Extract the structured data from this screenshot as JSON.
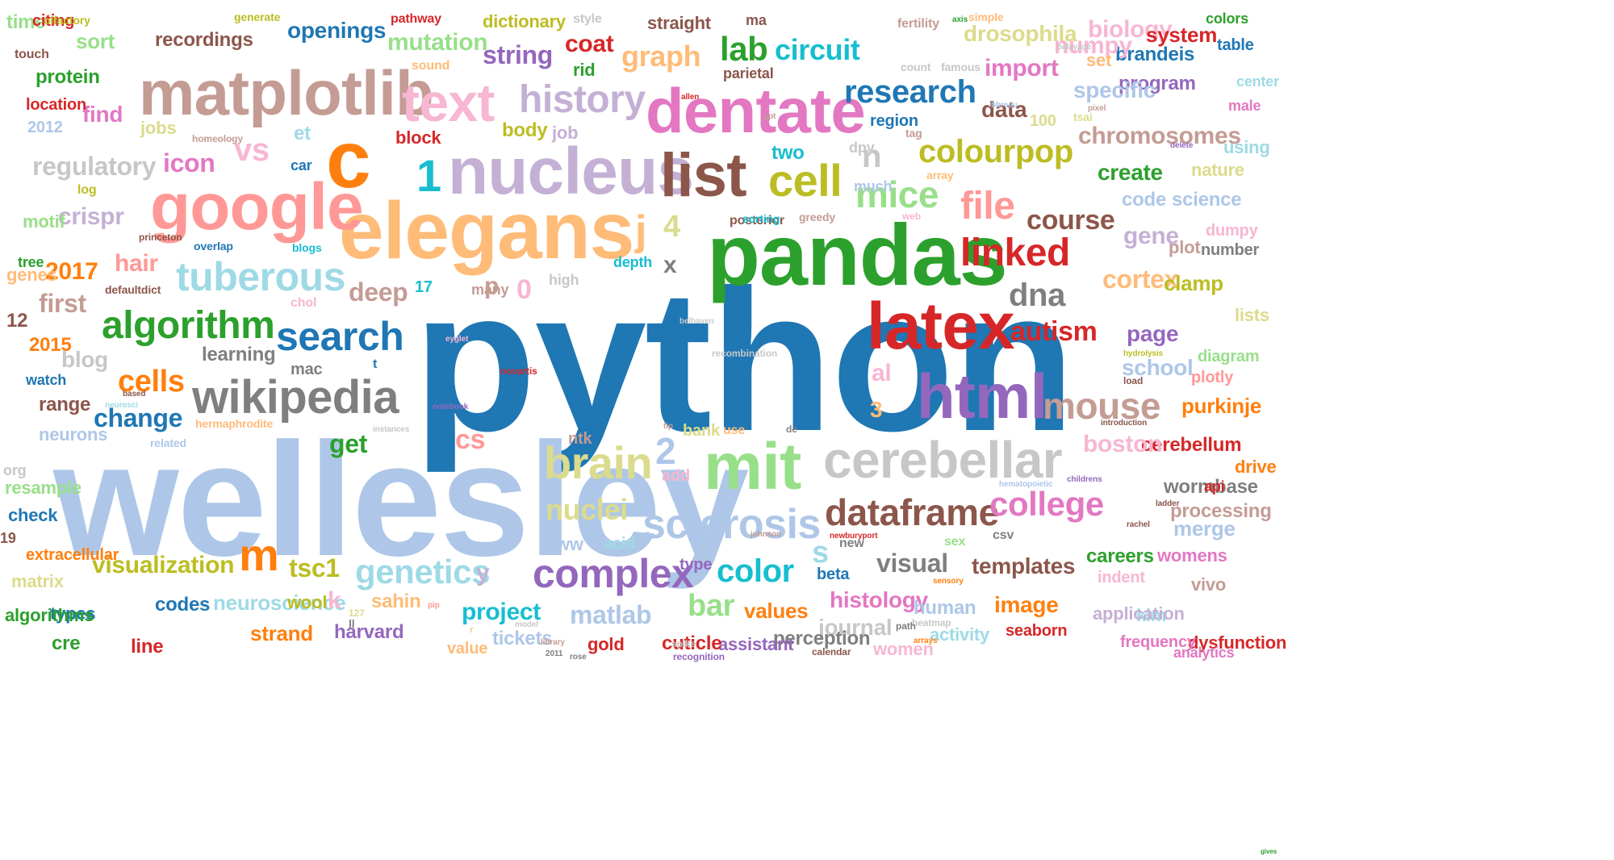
{
  "palette": {
    "blue": "#1f77b4",
    "light_blue": "#aec7e8",
    "orange": "#ff7f0e",
    "light_orange": "#ffbb78",
    "green": "#2ca02c",
    "light_green": "#98df8a",
    "red": "#d62728",
    "pink": "#ff9896",
    "purple": "#9467bd",
    "lavender": "#c5b0d5",
    "brown": "#8c564b",
    "tan": "#c49c94",
    "magenta": "#e377c2",
    "light_pink": "#f7b6d2",
    "gray": "#7f7f7f",
    "light_gray": "#c7c7c7",
    "olive": "#bcbd22",
    "khaki": "#dbdb8d",
    "cyan": "#17becf",
    "light_cyan": "#9edae5"
  },
  "words": [
    {
      "text": "python",
      "color": "blue"
    },
    {
      "text": "wellesley",
      "color": "light_blue"
    },
    {
      "text": "pandas",
      "color": "green"
    },
    {
      "text": "elegans",
      "color": "light_orange"
    },
    {
      "text": "nucleus",
      "color": "lavender"
    },
    {
      "text": "matplotlib",
      "color": "tan"
    },
    {
      "text": "google",
      "color": "pink"
    },
    {
      "text": "dentate",
      "color": "magenta"
    },
    {
      "text": "latex",
      "color": "red"
    },
    {
      "text": "html",
      "color": "purple"
    },
    {
      "text": "mit",
      "color": "light_green"
    },
    {
      "text": "cerebellar",
      "color": "light_gray"
    },
    {
      "text": "c",
      "color": "orange"
    },
    {
      "text": "list",
      "color": "brown"
    },
    {
      "text": "wikipedia",
      "color": "gray"
    },
    {
      "text": "text",
      "color": "light_pink"
    },
    {
      "text": "brain",
      "color": "khaki"
    },
    {
      "text": "history",
      "color": "lavender"
    },
    {
      "text": "algorithm",
      "color": "green"
    },
    {
      "text": "search",
      "color": "blue"
    },
    {
      "text": "tuberous",
      "color": "light_cyan"
    },
    {
      "text": "sclerosis",
      "color": "light_blue"
    },
    {
      "text": "complex",
      "color": "purple"
    },
    {
      "text": "dataframe",
      "color": "brown"
    },
    {
      "text": "cell",
      "color": "olive"
    },
    {
      "text": "mice",
      "color": "light_green"
    },
    {
      "text": "colourpop",
      "color": "olive"
    },
    {
      "text": "research",
      "color": "blue"
    },
    {
      "text": "linked",
      "color": "red"
    },
    {
      "text": "mouse",
      "color": "tan"
    },
    {
      "text": "college",
      "color": "magenta"
    },
    {
      "text": "dna",
      "color": "gray"
    },
    {
      "text": "file",
      "color": "pink"
    },
    {
      "text": "lab",
      "color": "green"
    },
    {
      "text": "circuit",
      "color": "cyan"
    },
    {
      "text": "graph",
      "color": "light_orange"
    },
    {
      "text": "string",
      "color": "purple"
    },
    {
      "text": "coat",
      "color": "red"
    },
    {
      "text": "mutation",
      "color": "light_green"
    },
    {
      "text": "openings",
      "color": "blue"
    },
    {
      "text": "recordings",
      "color": "brown"
    },
    {
      "text": "course",
      "color": "brown"
    },
    {
      "text": "autism",
      "color": "red"
    },
    {
      "text": "genetics",
      "color": "light_cyan"
    },
    {
      "text": "nuclei",
      "color": "khaki"
    },
    {
      "text": "color",
      "color": "cyan"
    },
    {
      "text": "visualization",
      "color": "olive"
    },
    {
      "text": "change",
      "color": "blue"
    },
    {
      "text": "cells",
      "color": "orange"
    },
    {
      "text": "blog",
      "color": "light_gray"
    },
    {
      "text": "regulatory",
      "color": "light_gray"
    },
    {
      "text": "icon",
      "color": "magenta"
    },
    {
      "text": "crispr",
      "color": "lavender"
    },
    {
      "text": "hair",
      "color": "pink"
    },
    {
      "text": "2017",
      "color": "orange"
    },
    {
      "text": "deep",
      "color": "tan"
    },
    {
      "text": "first",
      "color": "tan"
    },
    {
      "text": "vs",
      "color": "light_pink"
    },
    {
      "text": "find",
      "color": "magenta"
    },
    {
      "text": "protein",
      "color": "green"
    },
    {
      "text": "m",
      "color": "orange"
    },
    {
      "text": "tsc1",
      "color": "olive"
    },
    {
      "text": "project",
      "color": "cyan"
    },
    {
      "text": "matlab",
      "color": "light_blue"
    },
    {
      "text": "bar",
      "color": "light_green"
    },
    {
      "text": "values",
      "color": "orange"
    },
    {
      "text": "histology",
      "color": "magenta"
    },
    {
      "text": "image",
      "color": "orange"
    },
    {
      "text": "templates",
      "color": "brown"
    },
    {
      "text": "visual",
      "color": "gray"
    },
    {
      "text": "journal",
      "color": "light_gray"
    },
    {
      "text": "human",
      "color": "light_blue"
    },
    {
      "text": "careers",
      "color": "green"
    },
    {
      "text": "womens",
      "color": "magenta"
    },
    {
      "text": "cerebellum",
      "color": "red"
    },
    {
      "text": "boston",
      "color": "light_pink"
    },
    {
      "text": "purkinje",
      "color": "orange"
    },
    {
      "text": "wormbase",
      "color": "gray"
    },
    {
      "text": "merge",
      "color": "light_blue"
    },
    {
      "text": "processing",
      "color": "tan"
    },
    {
      "text": "page",
      "color": "purple"
    },
    {
      "text": "school",
      "color": "light_blue"
    },
    {
      "text": "cortex",
      "color": "light_orange"
    },
    {
      "text": "clamp",
      "color": "olive"
    },
    {
      "text": "gene",
      "color": "lavender"
    },
    {
      "text": "plot",
      "color": "tan"
    },
    {
      "text": "create",
      "color": "green"
    },
    {
      "text": "code",
      "color": "light_blue"
    },
    {
      "text": "science",
      "color": "light_blue"
    },
    {
      "text": "nature",
      "color": "khaki"
    },
    {
      "text": "chromosomes",
      "color": "tan"
    },
    {
      "text": "biology",
      "color": "light_pink"
    },
    {
      "text": "system",
      "color": "red"
    },
    {
      "text": "brandeis",
      "color": "blue"
    },
    {
      "text": "program",
      "color": "purple"
    },
    {
      "text": "drosophila",
      "color": "khaki"
    },
    {
      "text": "numpy",
      "color": "light_pink"
    },
    {
      "text": "import",
      "color": "magenta"
    },
    {
      "text": "data",
      "color": "brown"
    },
    {
      "text": "region",
      "color": "blue"
    },
    {
      "text": "specific",
      "color": "light_blue"
    },
    {
      "text": "set",
      "color": "light_orange"
    },
    {
      "text": "dictionary",
      "color": "olive"
    },
    {
      "text": "straight",
      "color": "brown"
    },
    {
      "text": "sort",
      "color": "light_green"
    },
    {
      "text": "location",
      "color": "red"
    },
    {
      "text": "2012",
      "color": "light_blue"
    },
    {
      "text": "jobs",
      "color": "khaki"
    },
    {
      "text": "two",
      "color": "cyan"
    },
    {
      "text": "n",
      "color": "light_gray"
    },
    {
      "text": "1",
      "color": "cyan"
    },
    {
      "text": "j",
      "color": "light_orange"
    },
    {
      "text": "4",
      "color": "khaki"
    },
    {
      "text": "x",
      "color": "gray"
    },
    {
      "text": "0",
      "color": "light_pink"
    },
    {
      "text": "17",
      "color": "cyan"
    },
    {
      "text": "cs",
      "color": "pink"
    },
    {
      "text": "2",
      "color": "light_blue"
    },
    {
      "text": "al",
      "color": "light_pink"
    },
    {
      "text": "3",
      "color": "light_orange"
    },
    {
      "text": "s",
      "color": "light_cyan"
    },
    {
      "text": "y",
      "color": "lavender"
    },
    {
      "text": "get",
      "color": "green"
    },
    {
      "text": "add",
      "color": "light_pink"
    },
    {
      "text": "drive",
      "color": "orange"
    },
    {
      "text": "api",
      "color": "red"
    },
    {
      "text": "lists",
      "color": "khaki"
    },
    {
      "text": "plotly",
      "color": "pink"
    },
    {
      "text": "diagram",
      "color": "light_green"
    },
    {
      "text": "number",
      "color": "gray"
    },
    {
      "text": "dumpy",
      "color": "light_pink"
    },
    {
      "text": "using",
      "color": "light_cyan"
    },
    {
      "text": "center",
      "color": "light_cyan"
    },
    {
      "text": "table",
      "color": "blue"
    },
    {
      "text": "male",
      "color": "magenta"
    },
    {
      "text": "colors",
      "color": "green"
    },
    {
      "text": "vivo",
      "color": "tan"
    },
    {
      "text": "kim",
      "color": "light_cyan"
    },
    {
      "text": "dysfunction",
      "color": "red"
    },
    {
      "text": "frequency",
      "color": "magenta"
    },
    {
      "text": "application",
      "color": "lavender"
    },
    {
      "text": "indent",
      "color": "light_pink"
    },
    {
      "text": "analytics",
      "color": "magenta"
    },
    {
      "text": "seaborn",
      "color": "red"
    },
    {
      "text": "activity",
      "color": "light_cyan"
    },
    {
      "text": "women",
      "color": "light_pink"
    },
    {
      "text": "perception",
      "color": "gray"
    },
    {
      "text": "assistant",
      "color": "purple"
    },
    {
      "text": "cuticle",
      "color": "red"
    },
    {
      "text": "gold",
      "color": "red"
    },
    {
      "text": "tickets",
      "color": "light_blue"
    },
    {
      "text": "value",
      "color": "light_orange"
    },
    {
      "text": "harvard",
      "color": "purple"
    },
    {
      "text": "sahin",
      "color": "light_orange"
    },
    {
      "text": "strand",
      "color": "orange"
    },
    {
      "text": "neuroscience",
      "color": "light_cyan"
    },
    {
      "text": "wool",
      "color": "olive"
    },
    {
      "text": "codes",
      "color": "blue"
    },
    {
      "text": "line",
      "color": "red"
    },
    {
      "text": "cre",
      "color": "green"
    },
    {
      "text": "types",
      "color": "blue"
    },
    {
      "text": "algorithms",
      "color": "green"
    },
    {
      "text": "matrix",
      "color": "khaki"
    },
    {
      "text": "extracellular",
      "color": "orange"
    },
    {
      "text": "check",
      "color": "blue"
    },
    {
      "text": "resample",
      "color": "light_green"
    },
    {
      "text": "neurons",
      "color": "light_blue"
    },
    {
      "text": "range",
      "color": "brown"
    },
    {
      "text": "watch",
      "color": "blue"
    },
    {
      "text": "genes",
      "color": "light_orange"
    },
    {
      "text": "motif",
      "color": "light_green"
    },
    {
      "text": "log",
      "color": "olive"
    },
    {
      "text": "car",
      "color": "blue"
    },
    {
      "text": "et",
      "color": "light_cyan"
    },
    {
      "text": "block",
      "color": "red"
    },
    {
      "text": "body",
      "color": "olive"
    },
    {
      "text": "job",
      "color": "lavender"
    },
    {
      "text": "rid",
      "color": "green"
    },
    {
      "text": "100",
      "color": "khaki"
    },
    {
      "text": "tsai",
      "color": "khaki"
    },
    {
      "text": "time",
      "color": "light_green"
    },
    {
      "text": "mac",
      "color": "gray"
    },
    {
      "text": "learning",
      "color": "gray"
    },
    {
      "text": "many",
      "color": "tan"
    },
    {
      "text": "depth",
      "color": "cyan"
    },
    {
      "text": "high",
      "color": "light_gray"
    },
    {
      "text": "ntk",
      "color": "tan"
    },
    {
      "text": "bank",
      "color": "khaki"
    },
    {
      "text": "use",
      "color": "light_orange"
    },
    {
      "text": "www",
      "color": "light_blue"
    },
    {
      "text": "acid",
      "color": "light_cyan"
    },
    {
      "text": "type",
      "color": "purple"
    },
    {
      "text": "new",
      "color": "gray"
    },
    {
      "text": "sex",
      "color": "light_green"
    },
    {
      "text": "csv",
      "color": "gray"
    },
    {
      "text": "beta",
      "color": "blue"
    },
    {
      "text": "parietal",
      "color": "brown"
    },
    {
      "text": "ma",
      "color": "brown"
    },
    {
      "text": "style",
      "color": "light_gray"
    },
    {
      "text": "simple",
      "color": "light_orange"
    },
    {
      "text": "citing",
      "color": "red"
    },
    {
      "text": "generate",
      "color": "olive"
    },
    {
      "text": "pathway",
      "color": "red"
    },
    {
      "text": "fertility",
      "color": "tan"
    },
    {
      "text": "sound",
      "color": "light_orange"
    },
    {
      "text": "hermaphrodite",
      "color": "light_orange"
    },
    {
      "text": "related",
      "color": "light_blue"
    },
    {
      "text": "posterior",
      "color": "brown"
    },
    {
      "text": "sorting",
      "color": "cyan"
    },
    {
      "text": "greedy",
      "color": "tan"
    },
    {
      "text": "web",
      "color": "light_pink"
    },
    {
      "text": "much",
      "color": "light_blue"
    },
    {
      "text": "array",
      "color": "light_orange"
    },
    {
      "text": "dpy",
      "color": "light_gray"
    },
    {
      "text": "tag",
      "color": "tan"
    },
    {
      "text": "count",
      "color": "light_gray"
    },
    {
      "text": "famous",
      "color": "light_gray"
    },
    {
      "text": "chol",
      "color": "light_pink"
    },
    {
      "text": "overlap",
      "color": "blue"
    },
    {
      "text": "defaultdict",
      "color": "brown"
    },
    {
      "text": "olfactory",
      "color": "olive"
    },
    {
      "text": "touch",
      "color": "brown"
    },
    {
      "text": "homeology",
      "color": "tan"
    },
    {
      "text": "princeton",
      "color": "brown"
    },
    {
      "text": "blogs",
      "color": "cyan"
    },
    {
      "text": "gives",
      "color": "green"
    },
    {
      "text": "tree",
      "color": "green"
    },
    {
      "text": "org",
      "color": "light_gray"
    },
    {
      "text": "12",
      "color": "brown"
    },
    {
      "text": "2015",
      "color": "orange"
    },
    {
      "text": "19",
      "color": "brown"
    },
    {
      "text": "p",
      "color": "tan"
    },
    {
      "text": "t",
      "color": "blue"
    },
    {
      "text": "novartis",
      "color": "red"
    },
    {
      "text": "k",
      "color": "light_pink"
    },
    {
      "text": "127",
      "color": "khaki"
    },
    {
      "text": "ll",
      "color": "gray"
    },
    {
      "text": "r",
      "color": "khaki"
    },
    {
      "text": "pip",
      "color": "pink"
    },
    {
      "text": "library",
      "color": "tan"
    },
    {
      "text": "2011",
      "color": "gray"
    },
    {
      "text": "rose",
      "color": "gray"
    },
    {
      "text": "model",
      "color": "light_gray"
    },
    {
      "text": "recognition",
      "color": "purple"
    },
    {
      "text": "johnson",
      "color": "tan"
    },
    {
      "text": "newburyport",
      "color": "red"
    },
    {
      "text": "calendar",
      "color": "brown"
    },
    {
      "text": "heatmap",
      "color": "light_gray"
    },
    {
      "text": "spike",
      "color": "light_gray"
    },
    {
      "text": "de",
      "color": "gray"
    },
    {
      "text": "sensory",
      "color": "orange"
    },
    {
      "text": "path",
      "color": "gray"
    },
    {
      "text": "hematopoietic",
      "color": "light_blue"
    },
    {
      "text": "arrays",
      "color": "orange"
    },
    {
      "text": "introduction",
      "color": "brown"
    },
    {
      "text": "childrens",
      "color": "purple"
    },
    {
      "text": "ladder",
      "color": "brown"
    },
    {
      "text": "rachel",
      "color": "brown"
    },
    {
      "text": "tip",
      "color": "tan"
    },
    {
      "text": "neurosci",
      "color": "light_cyan"
    },
    {
      "text": "based",
      "color": "brown"
    },
    {
      "text": "hydrolysis",
      "color": "olive"
    },
    {
      "text": "load",
      "color": "brown"
    },
    {
      "text": "axis",
      "color": "green"
    },
    {
      "text": "belhaven",
      "color": "light_gray"
    },
    {
      "text": "balayage",
      "color": "light_gray"
    },
    {
      "text": "recombination",
      "color": "light_gray"
    },
    {
      "text": "bbreau",
      "color": "light_blue"
    },
    {
      "text": "pixel",
      "color": "tan"
    },
    {
      "text": "delete",
      "color": "purple"
    },
    {
      "text": "allen",
      "color": "red"
    },
    {
      "text": "eyglet",
      "color": "light_pink"
    },
    {
      "text": "instances",
      "color": "light_gray"
    },
    {
      "text": "notebook",
      "color": "purple"
    },
    {
      "text": "gpt",
      "color": "tan"
    }
  ]
}
